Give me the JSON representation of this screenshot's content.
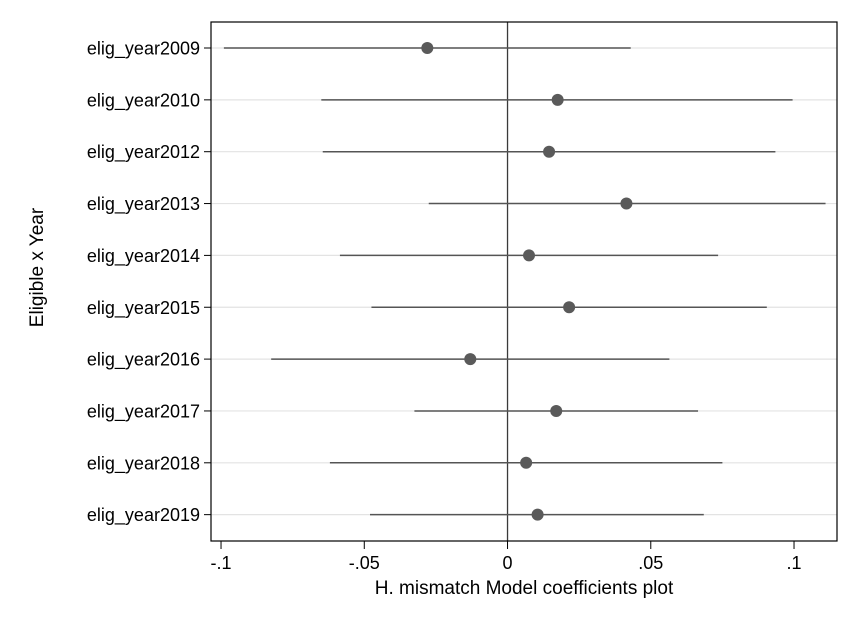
{
  "chart_data": {
    "type": "scatter",
    "subtype": "coefficient-plot",
    "title": "",
    "xlabel": "H. mismatch Model coefficients plot",
    "ylabel": "Eligible x Year",
    "xlim": [
      -0.1035,
      0.115
    ],
    "x_ticks": [
      -0.1,
      -0.05,
      0,
      0.05,
      0.1
    ],
    "x_tick_labels": [
      "-.1",
      "-.05",
      "0",
      ".05",
      ".1"
    ],
    "reference_line": 0,
    "grid": "horizontal",
    "colors": {
      "marker": "#5a5a5a",
      "ci": "#555555",
      "grid": "#e3e3e3",
      "frame": "#000000",
      "refline": "#3a3a3a"
    },
    "categories": [
      "elig_year2009",
      "elig_year2010",
      "elig_year2012",
      "elig_year2013",
      "elig_year2014",
      "elig_year2015",
      "elig_year2016",
      "elig_year2017",
      "elig_year2018",
      "elig_year2019"
    ],
    "estimates": [
      -0.028,
      0.0175,
      0.0145,
      0.0415,
      0.0075,
      0.0215,
      -0.013,
      0.017,
      0.0065,
      0.0105
    ],
    "ci_low": [
      -0.099,
      -0.065,
      -0.0645,
      -0.0275,
      -0.0585,
      -0.0475,
      -0.0825,
      -0.0325,
      -0.062,
      -0.048
    ],
    "ci_high": [
      0.043,
      0.0995,
      0.0935,
      0.111,
      0.0735,
      0.0905,
      0.0565,
      0.0665,
      0.075,
      0.0685
    ]
  }
}
